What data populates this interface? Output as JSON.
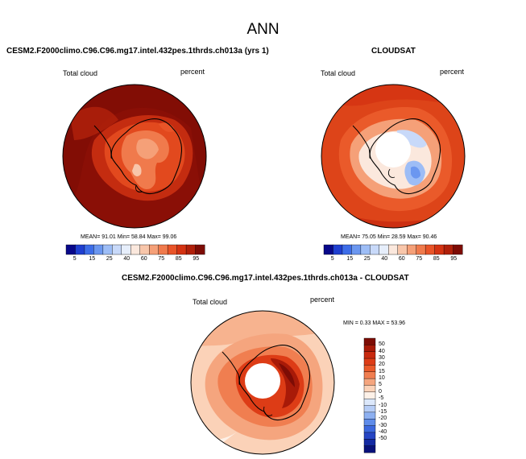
{
  "page": {
    "title": "ANN"
  },
  "panels": [
    {
      "id": "model",
      "title": "CESM2.F2000climo.C96.C96.mg17.intel.432pes.1thrds.ch013a (yrs 1)",
      "left_label": "Total cloud",
      "right_label": "percent",
      "stats_text": "MEAN=  91.01  Min=  58.84  Max=  99.06"
    },
    {
      "id": "obs",
      "title": "CLOUDSAT",
      "left_label": "Total cloud",
      "right_label": "percent",
      "stats_text": "MEAN=  75.05  Min=  28.59  Max=  90.46"
    },
    {
      "id": "diff",
      "title": "CESM2.F2000climo.C96.C96.mg17.intel.432pes.1thrds.ch013a - CLOUDSAT",
      "left_label": "Total cloud",
      "right_label": "percent",
      "stats_text": "MIN =  0.33 MAX =  53.96"
    }
  ],
  "colorbar_abs": {
    "ticks": [
      "5",
      "15",
      "25",
      "40",
      "60",
      "75",
      "85",
      "95"
    ],
    "colors": [
      "#08088a",
      "#1f3fd0",
      "#3d6de8",
      "#6b97f0",
      "#9dbdf6",
      "#c8d9f9",
      "#e6eefb",
      "#fbe8dd",
      "#f8c6aa",
      "#f5a078",
      "#f07a4c",
      "#e95428",
      "#d43312",
      "#b0200a",
      "#7d0c05"
    ]
  },
  "colorbar_diff": {
    "ticks": [
      "50",
      "40",
      "30",
      "20",
      "15",
      "10",
      "5",
      "0",
      "-5",
      "-10",
      "-15",
      "-20",
      "-30",
      "-40",
      "-50"
    ],
    "colors": [
      "#7d0c05",
      "#a81a08",
      "#c82a0f",
      "#dd3c16",
      "#ea5a2a",
      "#f07e50",
      "#f5a57e",
      "#fbd2b8",
      "#fdf1e8",
      "#dce8fb",
      "#b6cdf6",
      "#8db0f1",
      "#5f8cea",
      "#3c68de",
      "#2645c4",
      "#142aa2",
      "#08117a"
    ]
  },
  "palette": {
    "dark_red": "#7d0c05",
    "red": "#d43312",
    "orange": "#f07a4c",
    "light": "#fbe8dd",
    "pale_blue": "#c8d9f9",
    "blue": "#6b97f0"
  }
}
